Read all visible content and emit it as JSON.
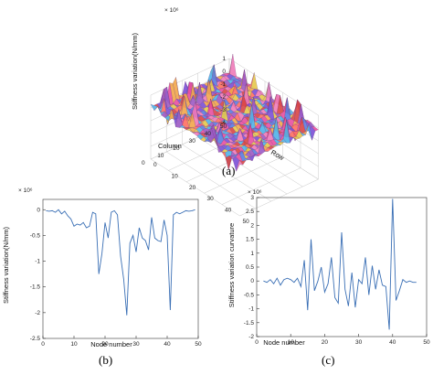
{
  "chart_data": [
    {
      "type": "surface",
      "panel": "(a)",
      "xlabel": "Row",
      "ylabel": "Column",
      "zlabel": "Stiffness variation(N/mm)",
      "exponent": "× 10⁶",
      "x_ticks": [
        "0",
        "10",
        "20",
        "30",
        "40",
        "50"
      ],
      "y_ticks": [
        "0",
        "10",
        "20",
        "30",
        "40",
        "50"
      ],
      "z_ticks": [
        "-4",
        "-3",
        "-2",
        "-1",
        "0",
        "1"
      ],
      "xlim": [
        0,
        50
      ],
      "ylim": [
        0,
        50
      ],
      "zlim": [
        -4,
        1
      ],
      "grid": true
    },
    {
      "type": "line",
      "panel": "(b)",
      "xlabel": "Node number",
      "ylabel": "Stiffness variation(N/mm)",
      "exponent": "× 10⁶",
      "xlim": [
        0,
        50
      ],
      "ylim": [
        -2.5,
        0.2
      ],
      "x_ticks": [
        "0",
        "10",
        "20",
        "30",
        "40",
        "50"
      ],
      "y_ticks": [
        "0",
        "-0.5",
        "-1",
        "-1.5",
        "-2",
        "-2.5"
      ],
      "series": [
        {
          "x": [
            1,
            2,
            3,
            4,
            5,
            6,
            7,
            8,
            9,
            10,
            11,
            12,
            13,
            14,
            15,
            16,
            17,
            18,
            19,
            20,
            21,
            22,
            23,
            24,
            25,
            26,
            27,
            28,
            29,
            30,
            31,
            32,
            33,
            34,
            35,
            36,
            37,
            38,
            39,
            40,
            41,
            42,
            43,
            44,
            45,
            46,
            47,
            48,
            49
          ],
          "values": [
            -0.02,
            -0.03,
            -0.02,
            -0.05,
            0.0,
            -0.08,
            -0.03,
            -0.12,
            -0.18,
            -0.32,
            -0.28,
            -0.3,
            -0.25,
            -0.35,
            -0.32,
            -0.05,
            -0.08,
            -1.25,
            -0.85,
            -0.25,
            -0.55,
            -0.05,
            -0.02,
            -0.1,
            -0.9,
            -1.35,
            -2.05,
            -0.65,
            -0.5,
            -0.82,
            -0.35,
            -0.55,
            -0.6,
            -0.78,
            -0.15,
            -0.55,
            -0.6,
            -0.62,
            -0.2,
            -0.5,
            -1.95,
            -0.1,
            -0.05,
            -0.08,
            -0.05,
            -0.02,
            -0.03,
            -0.02,
            -0.0
          ]
        }
      ]
    },
    {
      "type": "line",
      "panel": "(c)",
      "xlabel": "Node number",
      "ylabel": "Stiffness variation curvature",
      "exponent": "× 10⁶",
      "xlim": [
        0,
        50
      ],
      "ylim": [
        -2,
        3
      ],
      "x_ticks": [
        "0",
        "10",
        "20",
        "30",
        "40",
        "50"
      ],
      "y_ticks": [
        "3",
        "2.5",
        "2",
        "1.5",
        "1",
        "0.5",
        "0",
        "-0.5",
        "-1",
        "-1.5",
        "-2"
      ],
      "series": [
        {
          "x": [
            2,
            3,
            4,
            5,
            6,
            7,
            8,
            9,
            10,
            11,
            12,
            13,
            14,
            15,
            16,
            17,
            18,
            19,
            20,
            21,
            22,
            23,
            24,
            25,
            26,
            27,
            28,
            29,
            30,
            31,
            32,
            33,
            34,
            35,
            36,
            37,
            38,
            39,
            40,
            41,
            42,
            43,
            44,
            45,
            46,
            47
          ],
          "values": [
            0.0,
            -0.05,
            0.05,
            -0.1,
            0.1,
            -0.15,
            0.05,
            0.1,
            0.05,
            -0.05,
            0.1,
            -0.2,
            0.75,
            -1.05,
            1.5,
            -0.35,
            0.0,
            0.5,
            -0.4,
            -0.1,
            0.85,
            -0.6,
            -0.8,
            1.75,
            -0.3,
            -0.9,
            0.3,
            -0.95,
            0.05,
            -0.1,
            0.85,
            -0.5,
            0.55,
            -0.3,
            0.4,
            -0.15,
            -0.2,
            -1.75,
            2.95,
            -0.7,
            -0.35,
            0.05,
            -0.05,
            0.0,
            -0.05,
            -0.05
          ]
        }
      ]
    }
  ],
  "captions": {
    "a": "(a)",
    "b": "(b)",
    "c": "(c)"
  }
}
